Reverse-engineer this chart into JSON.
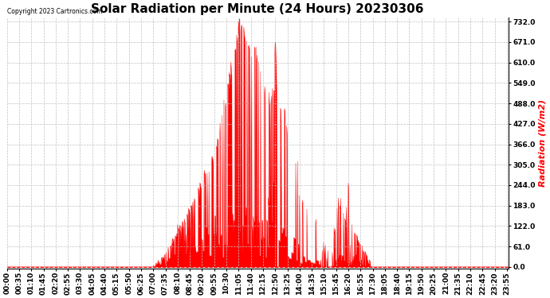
{
  "title": "Solar Radiation per Minute (24 Hours) 20230306",
  "ylabel": "Radiation (W/m2)",
  "ylabel_color": "#ff0000",
  "copyright_text": "Copyright 2023 Cartronics.com",
  "background_color": "#ffffff",
  "fill_color": "#ff0000",
  "line_color": "#ff0000",
  "grid_color": "#c0c0c0",
  "baseline_color": "#ff0000",
  "ylim_min": -5.0,
  "ylim_max": 745.0,
  "yticks": [
    0.0,
    61.0,
    122.0,
    183.0,
    244.0,
    305.0,
    366.0,
    427.0,
    488.0,
    549.0,
    610.0,
    671.0,
    732.0
  ],
  "total_minutes": 1440,
  "title_fontsize": 11,
  "tick_fontsize": 6.5,
  "label_fontsize": 8,
  "xtick_step": 35
}
